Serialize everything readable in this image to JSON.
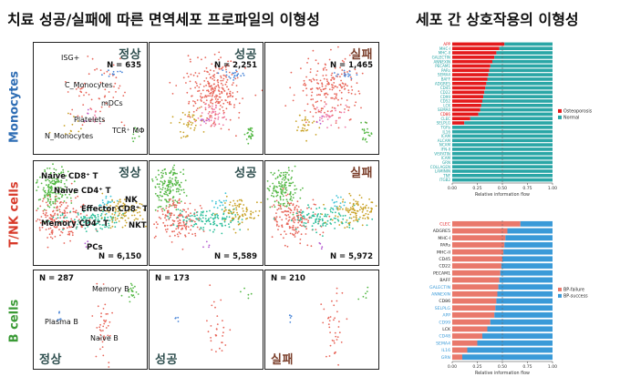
{
  "titles": {
    "left": "치료 성공/실패에 따른 면역세포 프로파일의 이형성",
    "right": "세포 간 상호작용의 이형성"
  },
  "row_labels": [
    {
      "text": "Monocytes",
      "color": "#2e6db4"
    },
    {
      "text": "T/NK cells",
      "color": "#d83a2a"
    },
    {
      "text": "B cells",
      "color": "#3a9a35"
    }
  ],
  "tags": {
    "normal": {
      "text": "정상",
      "color": "#2f4f4f"
    },
    "success": {
      "text": "성공",
      "color": "#2f4f4f"
    },
    "failure": {
      "text": "실패",
      "color": "#7a3e2a"
    }
  },
  "umap_counts": {
    "monocytes": [
      "N = 635",
      "N = 2,251",
      "N = 1,465"
    ],
    "tnk": [
      "N = 6,150",
      "N = 5,589",
      "N = 5,972"
    ],
    "bcells": [
      "N = 287",
      "N = 173",
      "N = 210"
    ]
  },
  "cell_labels": {
    "monocytes": [
      "ISG+",
      "C_Monocytes",
      "mDCs",
      "Platelets",
      "N_Monocytes",
      "TCR⁺ MΦ"
    ],
    "tnk": [
      "Naive CD8⁺ T",
      "Naive CD4⁺ T",
      "Effector CD8⁺ T",
      "NK",
      "NKT",
      "Memory CD4⁺ T",
      "PCs"
    ],
    "bcells": [
      "Memory B",
      "Plasma B",
      "Naive B"
    ]
  },
  "colors": {
    "red": "#e8665a",
    "green": "#55b846",
    "teal": "#2bbf9a",
    "gold": "#c9a227",
    "blue": "#4a86d8",
    "purple": "#b45cd1",
    "pink": "#f07aa6",
    "cyan": "#3ec4d6",
    "osteo": "#e41a1c",
    "normal": "#2aa6a6",
    "bpfail": "#e9786b",
    "bpsucc": "#3a9ad8"
  },
  "chart_data": [
    {
      "type": "bar",
      "stacked": true,
      "orientation": "horizontal",
      "categories": [
        "APP",
        "MHC-I",
        "MHC-II",
        "GALECTIN",
        "ANNEXIN",
        "PECAM1",
        "PARs",
        "SEMA4",
        "BAFF",
        "ADGRE5",
        "CD45",
        "CD22",
        "CD99",
        "CD52",
        "LCK",
        "SEMA4",
        "CD86",
        "CLEC",
        "SELPLG",
        "TGFb",
        "IL16",
        "ICAM",
        "ALCAM",
        "NCAM",
        "IFN-II",
        "VISFATIN",
        "ICAM",
        "GRN",
        "COLLAGEN",
        "LAMININ",
        "TNF",
        "ITGB2"
      ],
      "category_colors": [
        "#e41a1c",
        "#2aa6a6",
        "#2aa6a6",
        "#2aa6a6",
        "#2aa6a6",
        "#2aa6a6",
        "#2aa6a6",
        "#2aa6a6",
        "#2aa6a6",
        "#2aa6a6",
        "#2aa6a6",
        "#2aa6a6",
        "#2aa6a6",
        "#2aa6a6",
        "#2aa6a6",
        "#2aa6a6",
        "#e41a1c",
        "#2aa6a6",
        "#2aa6a6",
        "#2aa6a6",
        "#2aa6a6",
        "#2aa6a6",
        "#2aa6a6",
        "#2aa6a6",
        "#2aa6a6",
        "#2aa6a6",
        "#2aa6a6",
        "#2aa6a6",
        "#2aa6a6",
        "#2aa6a6",
        "#2aa6a6",
        "#2aa6a6"
      ],
      "series": [
        {
          "name": "Osteoporosis",
          "values": [
            0.52,
            0.47,
            0.44,
            0.42,
            0.4,
            0.38,
            0.37,
            0.36,
            0.35,
            0.34,
            0.33,
            0.32,
            0.31,
            0.3,
            0.29,
            0.28,
            0.26,
            0.18,
            0.12,
            0,
            0,
            0,
            0,
            0,
            0,
            0,
            0,
            0,
            0,
            0,
            0,
            0
          ]
        },
        {
          "name": "Normal",
          "values": [
            0.48,
            0.53,
            0.56,
            0.58,
            0.6,
            0.62,
            0.63,
            0.64,
            0.65,
            0.66,
            0.67,
            0.68,
            0.69,
            0.7,
            0.71,
            0.72,
            0.74,
            0.82,
            0.88,
            1,
            1,
            1,
            1,
            1,
            1,
            1,
            1,
            1,
            1,
            1,
            1,
            1
          ]
        }
      ],
      "xlabel": "Relative information flow",
      "xticks": [
        "0.00",
        "0.25",
        "0.50",
        "0.75",
        "1.00"
      ],
      "xlim": [
        0,
        1
      ],
      "reference_line": 0.5,
      "legend_position": "right"
    },
    {
      "type": "bar",
      "stacked": true,
      "orientation": "horizontal",
      "categories": [
        "CLEC",
        "ADGRE5",
        "MHC-I",
        "PARs",
        "MHC-II",
        "CD45",
        "CD22",
        "PECAM1",
        "BAFF",
        "GALECTIN",
        "ANNEXIN",
        "CD86",
        "SELPLG",
        "APP",
        "CD99",
        "LCK",
        "CD48",
        "SEMA4",
        "IL16",
        "GRN"
      ],
      "category_colors": [
        "#e41a1c",
        "#222222",
        "#222222",
        "#222222",
        "#222222",
        "#222222",
        "#222222",
        "#222222",
        "#222222",
        "#3a9ad8",
        "#3a9ad8",
        "#222222",
        "#3a9ad8",
        "#3a9ad8",
        "#3a9ad8",
        "#222222",
        "#3a9ad8",
        "#3a9ad8",
        "#3a9ad8",
        "#3a9ad8"
      ],
      "series": [
        {
          "name": "BP-failure",
          "values": [
            0.68,
            0.55,
            0.53,
            0.52,
            0.51,
            0.5,
            0.49,
            0.48,
            0.47,
            0.46,
            0.45,
            0.44,
            0.43,
            0.42,
            0.38,
            0.35,
            0.3,
            0.25,
            0.15,
            0.1
          ]
        },
        {
          "name": "BP-success",
          "values": [
            0.32,
            0.45,
            0.47,
            0.48,
            0.49,
            0.5,
            0.51,
            0.52,
            0.53,
            0.54,
            0.55,
            0.56,
            0.57,
            0.58,
            0.62,
            0.65,
            0.7,
            0.75,
            0.85,
            0.9
          ]
        }
      ],
      "xlabel": "Relative information flow",
      "xticks": [
        "0.00",
        "0.25",
        "0.50",
        "0.75",
        "1.00"
      ],
      "xlim": [
        0,
        1
      ],
      "reference_line": 0.5,
      "legend_position": "right"
    }
  ]
}
